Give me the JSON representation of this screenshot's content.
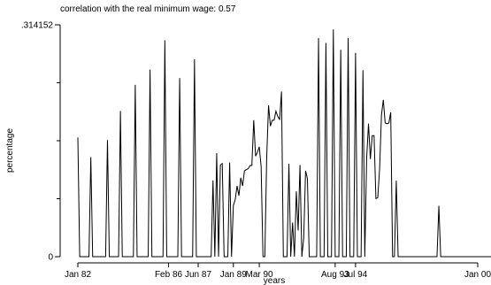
{
  "chart_data": {
    "type": "line",
    "title": "correlation with the real minimum wage: 0.57",
    "xlabel": "years",
    "ylabel": "percentage",
    "x_start": "1982-01",
    "x_end": "2000-01",
    "x_tick_labels": [
      "Jan 82",
      "Feb 86",
      "Jun 87",
      "Jan 89",
      "Mar 90",
      "Aug 93",
      "Jul 94",
      "Jan 00"
    ],
    "x_tick_dates": [
      "1982-01",
      "1986-02",
      "1987-06",
      "1989-01",
      "1990-03",
      "1993-08",
      "1994-07",
      "2000-01"
    ],
    "y_tick_labels": [
      ".314152",
      "0"
    ],
    "ylim": [
      0,
      0.314152
    ],
    "grid": false,
    "series": [
      {
        "values": [
          0.1615,
          0.0,
          0.0,
          0.0,
          0.0,
          0.0,
          0.0,
          0.1349,
          0.0,
          0.0,
          0.0,
          0.0,
          0.0,
          0.0,
          0.0,
          0.0,
          0.1579,
          0.0,
          0.0,
          0.0,
          0.0,
          0.0,
          0.0,
          0.1974,
          0.0,
          0.0,
          0.0,
          0.0,
          0.0,
          0.0,
          0.0,
          0.2328,
          0.0,
          0.0,
          0.0,
          0.0,
          0.0,
          0.0,
          0.0,
          0.2535,
          0.0,
          0.0,
          0.0,
          0.0,
          0.0,
          0.0,
          0.0,
          0.2932,
          0.0,
          0.0,
          0.0,
          0.0,
          0.0,
          0.0,
          0.0,
          0.2421,
          0.0,
          0.0,
          0.0,
          0.0,
          0.0,
          0.0,
          0.0,
          0.2674,
          0.0,
          0.0,
          0.0,
          0.0,
          0.0,
          0.0,
          0.0,
          0.0,
          0.0,
          0.1034,
          0.0,
          0.1401,
          0.0,
          0.1243,
          0.1262,
          0.0,
          0.0,
          0.0,
          0.1275,
          0.0,
          0.0693,
          0.0773,
          0.0958,
          0.0826,
          0.107,
          0.0958,
          0.1164,
          0.1179,
          0.1192,
          0.1235,
          0.1235,
          0.185,
          0.1362,
          0.1415,
          0.1488,
          0.1221,
          0.0,
          0.0,
          0.1335,
          0.2052,
          0.1769,
          0.1848,
          0.1848,
          0.1972,
          0.19,
          0.1861,
          0.2238,
          0.0,
          0.0,
          0.0,
          0.1258,
          0.0,
          0.0462,
          0.0,
          0.0885,
          0.0356,
          0.1243,
          0.0,
          0.0251,
          0.1164,
          0.1059,
          0.0,
          0.0,
          0.0,
          0.0,
          0.0,
          0.2962,
          0.0,
          0.0,
          0.0,
          0.2896,
          0.0,
          0.0,
          0.0,
          0.3079,
          0.0,
          0.0,
          0.0,
          0.2803,
          0.0,
          0.0,
          0.0,
          0.2961,
          0.0,
          0.0,
          0.0,
          0.2761,
          0.0,
          0.0,
          0.0,
          0.2526,
          0.0,
          0.1335,
          0.1802,
          0.1322,
          0.1639,
          0.1639,
          0.0787,
          0.0799,
          0.119,
          0.1921,
          0.2125,
          0.1811,
          0.1802,
          0.1811,
          0.1957,
          0.0,
          0.0,
          0.1029,
          0.0,
          0.0,
          0.0,
          0.0,
          0.0,
          0.0,
          0.0,
          0.0,
          0.0,
          0.0,
          0.0,
          0.0,
          0.0,
          0.0,
          0.0,
          0.0,
          0.0,
          0.0,
          0.0,
          0.0,
          0.0,
          0.0,
          0.0689,
          0.0,
          0.0,
          0.0,
          0.0,
          0.0,
          0.0,
          0.0,
          0.0,
          0.0,
          0.0,
          0.0,
          0.0,
          0.0,
          0.0,
          0.0,
          0.0,
          0.0,
          0.0,
          0.0,
          0.0,
          0.0,
          0.0,
          0.0,
          0.0,
          0.0,
          0.0,
          0.0,
          0.0,
          0.0,
          0.0,
          0.0,
          0.0,
          0.0,
          0.0,
          0.0,
          0.0,
          0.0,
          0.0,
          0.0,
          0.0,
          0.0,
          0.0,
          0.0,
          0.0
        ]
      }
    ]
  }
}
